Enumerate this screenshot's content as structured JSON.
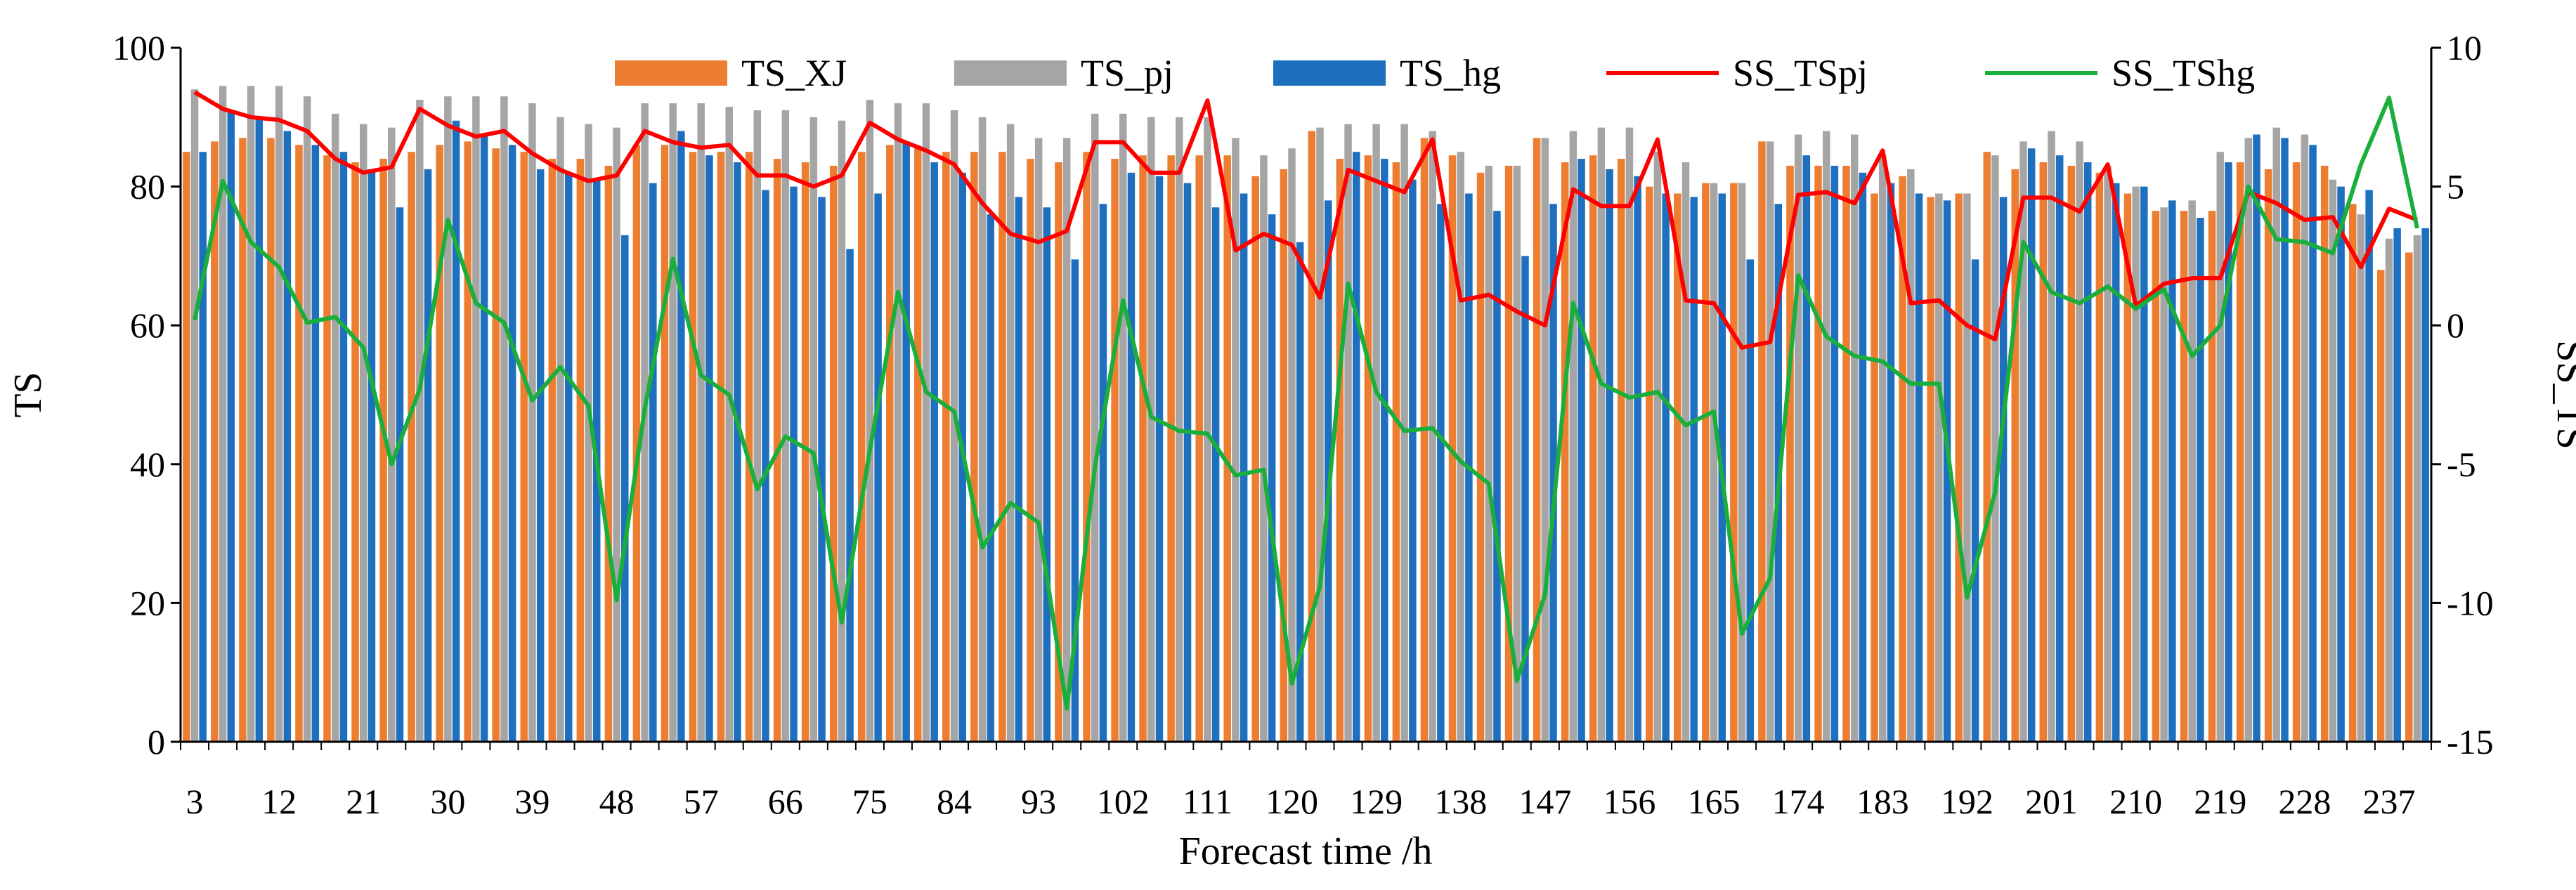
{
  "chart_data": {
    "type": "bar+line",
    "xlabel": "Forecast time /h",
    "ylabel": "TS",
    "y2label": "SS_TS",
    "ylim": [
      0,
      100
    ],
    "y2lim": [
      -15,
      10
    ],
    "yticks": [
      0,
      20,
      40,
      60,
      80,
      100
    ],
    "y2ticks": [
      -15,
      -10,
      -5,
      0,
      5,
      10
    ],
    "xticks": [
      "3",
      "12",
      "21",
      "30",
      "39",
      "48",
      "57",
      "66",
      "75",
      "84",
      "93",
      "102",
      "111",
      "120",
      "129",
      "138",
      "147",
      "156",
      "165",
      "174",
      "183",
      "192",
      "201",
      "210",
      "219",
      "228",
      "237"
    ],
    "grid": false,
    "legend": "top",
    "x": [
      3,
      6,
      9,
      12,
      15,
      18,
      21,
      24,
      27,
      30,
      33,
      36,
      39,
      42,
      45,
      48,
      51,
      54,
      57,
      60,
      63,
      66,
      69,
      72,
      75,
      78,
      81,
      84,
      87,
      90,
      93,
      96,
      99,
      102,
      105,
      108,
      111,
      114,
      117,
      120,
      123,
      126,
      129,
      132,
      135,
      138,
      141,
      144,
      147,
      150,
      153,
      156,
      159,
      162,
      165,
      168,
      171,
      174,
      177,
      180,
      183,
      186,
      189,
      192,
      195,
      198,
      201,
      204,
      207,
      210,
      213,
      216,
      219,
      222,
      225,
      228,
      231,
      234,
      237,
      240
    ],
    "bar_series": [
      {
        "name": "TS_XJ",
        "color": "#ED7D31",
        "values": [
          85.0,
          86.5,
          87.0,
          87.0,
          86.0,
          84.5,
          83.5,
          84.0,
          85.0,
          86.0,
          86.5,
          85.5,
          85.0,
          84.0,
          84.0,
          83.0,
          86.0,
          86.0,
          85.0,
          85.0,
          85.0,
          84.0,
          83.5,
          83.0,
          85.0,
          86.0,
          85.5,
          85.0,
          85.0,
          85.0,
          84.0,
          83.5,
          85.0,
          84.0,
          84.5,
          84.5,
          84.5,
          84.5,
          81.5,
          82.5,
          88.0,
          84.0,
          84.5,
          83.5,
          87.0,
          84.5,
          82.0,
          83.0,
          87.0,
          83.5,
          84.5,
          84.0,
          80.0,
          79.0,
          80.5,
          80.5,
          86.5,
          83.0,
          83.0,
          83.0,
          79.0,
          81.5,
          78.5,
          79.0,
          85.0,
          82.5,
          83.5,
          83.0,
          82.0,
          79.0,
          76.5,
          76.5,
          76.5,
          83.5,
          82.5,
          83.5,
          83.0,
          77.5,
          68.0,
          70.5
        ]
      },
      {
        "name": "TS_pj",
        "color": "#A5A5A5",
        "values": [
          94.0,
          94.5,
          94.5,
          94.5,
          93.0,
          90.5,
          89.0,
          88.5,
          92.5,
          93.0,
          93.0,
          93.0,
          92.0,
          90.0,
          89.0,
          88.5,
          92.0,
          92.0,
          92.0,
          91.5,
          91.0,
          91.0,
          90.0,
          89.5,
          92.5,
          92.0,
          92.0,
          91.0,
          90.0,
          89.0,
          87.0,
          87.0,
          90.5,
          90.5,
          90.0,
          90.0,
          90.0,
          87.0,
          84.5,
          85.5,
          88.5,
          89.0,
          89.0,
          89.0,
          88.0,
          85.0,
          83.0,
          83.0,
          87.0,
          88.0,
          88.5,
          88.5,
          85.0,
          83.5,
          80.5,
          80.5,
          86.5,
          87.5,
          88.0,
          87.5,
          84.5,
          82.5,
          79.0,
          79.0,
          84.5,
          86.5,
          88.0,
          86.5,
          83.0,
          80.0,
          77.0,
          78.0,
          85.0,
          87.0,
          88.5,
          87.5,
          81.0,
          76.0,
          72.5,
          73.0
        ]
      },
      {
        "name": "TS_hg",
        "color": "#1F6FBF",
        "values": [
          85.0,
          91.0,
          90.0,
          88.0,
          86.0,
          85.0,
          82.5,
          77.0,
          82.5,
          89.5,
          87.5,
          86.0,
          82.5,
          82.0,
          81.0,
          73.0,
          80.5,
          88.0,
          84.5,
          83.5,
          79.5,
          80.0,
          78.5,
          71.0,
          79.0,
          86.5,
          83.5,
          82.0,
          76.0,
          78.5,
          77.0,
          69.5,
          77.5,
          82.0,
          81.5,
          80.5,
          77.0,
          79.0,
          76.0,
          72.0,
          78.0,
          85.0,
          84.0,
          81.0,
          77.5,
          79.0,
          76.5,
          70.0,
          77.5,
          84.0,
          82.5,
          81.5,
          79.0,
          78.5,
          79.0,
          69.5,
          77.5,
          84.5,
          83.0,
          82.0,
          80.5,
          79.0,
          78.0,
          69.5,
          78.5,
          85.5,
          84.5,
          83.5,
          80.5,
          80.0,
          78.0,
          75.5,
          83.5,
          87.5,
          87.0,
          86.0,
          80.0,
          79.5,
          74.0,
          74.0
        ]
      }
    ],
    "line_series": [
      {
        "name": "SS_TSpj",
        "color": "#FF0000",
        "axis": "right",
        "values": [
          8.4,
          7.8,
          7.5,
          7.4,
          7.0,
          6.0,
          5.5,
          5.7,
          7.8,
          7.2,
          6.8,
          7.0,
          6.2,
          5.6,
          5.2,
          5.4,
          7.0,
          6.6,
          6.4,
          6.5,
          5.4,
          5.4,
          5.0,
          5.4,
          7.3,
          6.7,
          6.3,
          5.8,
          4.4,
          3.3,
          3.0,
          3.4,
          6.6,
          6.6,
          5.5,
          5.5,
          8.1,
          2.7,
          3.3,
          2.9,
          1.0,
          5.6,
          5.2,
          4.8,
          6.7,
          0.9,
          1.1,
          0.5,
          0.0,
          4.9,
          4.3,
          4.3,
          6.7,
          0.9,
          0.8,
          -0.8,
          -0.6,
          4.7,
          4.8,
          4.4,
          6.3,
          0.8,
          0.9,
          0.0,
          -0.5,
          4.6,
          4.6,
          4.1,
          5.8,
          0.7,
          1.5,
          1.7,
          1.7,
          4.8,
          4.4,
          3.8,
          3.9,
          2.1,
          4.2,
          3.8
        ]
      },
      {
        "name": "SS_TShg",
        "color": "#1AAF3C",
        "axis": "right",
        "values": [
          0.2,
          5.2,
          3.0,
          2.1,
          0.1,
          0.3,
          -0.8,
          -5.0,
          -2.3,
          3.8,
          0.8,
          0.1,
          -2.7,
          -1.5,
          -2.9,
          -9.9,
          -3.0,
          2.4,
          -1.8,
          -2.5,
          -5.9,
          -4.0,
          -4.6,
          -10.7,
          -4.5,
          1.2,
          -2.4,
          -3.1,
          -8.0,
          -6.4,
          -7.1,
          -13.8,
          -5.1,
          0.9,
          -3.3,
          -3.8,
          -3.9,
          -5.4,
          -5.2,
          -12.9,
          -9.4,
          1.5,
          -2.4,
          -3.8,
          -3.7,
          -4.9,
          -5.7,
          -12.8,
          -9.7,
          0.8,
          -2.1,
          -2.6,
          -2.4,
          -3.6,
          -3.1,
          -11.1,
          -9.1,
          1.8,
          -0.4,
          -1.1,
          -1.3,
          -2.1,
          -2.1,
          -9.8,
          -6.0,
          3.0,
          1.2,
          0.8,
          1.4,
          0.6,
          1.3,
          -1.1,
          0.0,
          5.0,
          3.1,
          3.0,
          2.6,
          5.8,
          8.2,
          3.5
        ]
      }
    ]
  }
}
